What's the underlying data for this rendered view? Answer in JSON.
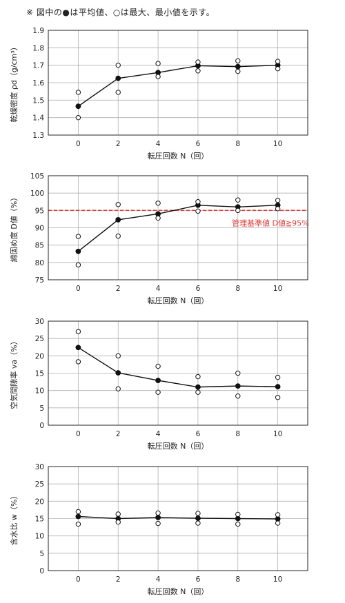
{
  "note": "※ 図中の●は平均値、○は最大、最小値を示す。",
  "colors": {
    "axis": "#222222",
    "grid": "#b0b0b0",
    "reference": "#e03a3a"
  },
  "chart_data": [
    {
      "type": "scatter",
      "xlabel": "転圧回数 N（回）",
      "ylabel": "乾燥密度 ρd（g/cm³）",
      "x_ticks": [
        0,
        2,
        4,
        6,
        8,
        10
      ],
      "y_ticks": [
        "1.3",
        "1.4",
        "1.5",
        "1.6",
        "1.7",
        "1.8",
        "1.9"
      ],
      "ylim": [
        1.3,
        1.9
      ],
      "xlim": [
        -1.5,
        11.5
      ],
      "grid": true,
      "series": [
        {
          "role": "mean",
          "marker": "filled-circle",
          "line": true,
          "points": [
            [
              0,
              1.465
            ],
            [
              2,
              1.625
            ],
            [
              4,
              1.658
            ],
            [
              6,
              1.697
            ],
            [
              8,
              1.692
            ],
            [
              10,
              1.7
            ]
          ]
        },
        {
          "role": "max-min",
          "marker": "open-circle",
          "line": false,
          "points": [
            [
              0,
              1.545
            ],
            [
              0,
              1.4
            ],
            [
              2,
              1.7
            ],
            [
              2,
              1.545
            ],
            [
              4,
              1.71
            ],
            [
              4,
              1.635
            ],
            [
              6,
              1.718
            ],
            [
              6,
              1.668
            ],
            [
              8,
              1.725
            ],
            [
              8,
              1.665
            ],
            [
              10,
              1.722
            ],
            [
              10,
              1.68
            ]
          ]
        }
      ]
    },
    {
      "type": "scatter",
      "xlabel": "転圧回数 N（回）",
      "ylabel": "締固め度 D値（%）",
      "x_ticks": [
        0,
        2,
        4,
        6,
        8,
        10
      ],
      "y_ticks": [
        "75",
        "80",
        "85",
        "90",
        "95",
        "100",
        "105"
      ],
      "ylim": [
        75,
        105
      ],
      "xlim": [
        -1.5,
        11.5
      ],
      "grid": true,
      "reference_line": {
        "value": 95,
        "label": "管理基準値 D値≧95%",
        "style": "dashed",
        "color": "#e03a3a"
      },
      "series": [
        {
          "role": "mean",
          "marker": "filled-circle",
          "line": true,
          "points": [
            [
              0,
              83.2
            ],
            [
              2,
              92.3
            ],
            [
              4,
              94.0
            ],
            [
              6,
              96.5
            ],
            [
              8,
              96.0
            ],
            [
              10,
              96.5
            ]
          ]
        },
        {
          "role": "max-min",
          "marker": "open-circle",
          "line": false,
          "points": [
            [
              0,
              87.5
            ],
            [
              0,
              79.3
            ],
            [
              2,
              96.7
            ],
            [
              2,
              87.6
            ],
            [
              4,
              97.1
            ],
            [
              4,
              92.8
            ],
            [
              6,
              97.5
            ],
            [
              6,
              94.8
            ],
            [
              8,
              98.0
            ],
            [
              8,
              95.0
            ],
            [
              10,
              97.9
            ],
            [
              10,
              95.5
            ]
          ]
        }
      ]
    },
    {
      "type": "scatter",
      "xlabel": "転圧回数 N（回）",
      "ylabel": "空気間隙率 va（%）",
      "x_ticks": [
        0,
        2,
        4,
        6,
        8,
        10
      ],
      "y_ticks": [
        "0",
        "5",
        "10",
        "15",
        "20",
        "25",
        "30"
      ],
      "ylim": [
        0,
        30
      ],
      "xlim": [
        -1.5,
        11.5
      ],
      "grid": true,
      "series": [
        {
          "role": "mean",
          "marker": "filled-circle",
          "line": true,
          "points": [
            [
              0,
              22.4
            ],
            [
              2,
              15.1
            ],
            [
              4,
              12.9
            ],
            [
              6,
              11.0
            ],
            [
              8,
              11.3
            ],
            [
              10,
              11.1
            ]
          ]
        },
        {
          "role": "max-min",
          "marker": "open-circle",
          "line": false,
          "points": [
            [
              0,
              27.0
            ],
            [
              0,
              18.3
            ],
            [
              2,
              20.0
            ],
            [
              2,
              10.5
            ],
            [
              4,
              17.0
            ],
            [
              4,
              9.5
            ],
            [
              6,
              14.0
            ],
            [
              6,
              9.5
            ],
            [
              8,
              15.0
            ],
            [
              8,
              8.4
            ],
            [
              10,
              13.8
            ],
            [
              10,
              8.0
            ]
          ]
        }
      ]
    },
    {
      "type": "scatter",
      "xlabel": "転圧回数 N（回）",
      "ylabel": "含水比 w（%）",
      "x_ticks": [
        0,
        2,
        4,
        6,
        8,
        10
      ],
      "y_ticks": [
        "0",
        "5",
        "10",
        "15",
        "20",
        "25",
        "30"
      ],
      "ylim": [
        0,
        30
      ],
      "xlim": [
        -1.5,
        11.5
      ],
      "grid": true,
      "series": [
        {
          "role": "mean",
          "marker": "filled-circle",
          "line": true,
          "points": [
            [
              0,
              15.6
            ],
            [
              2,
              15.0
            ],
            [
              4,
              15.3
            ],
            [
              6,
              15.1
            ],
            [
              8,
              15.0
            ],
            [
              10,
              14.9
            ]
          ]
        },
        {
          "role": "max-min",
          "marker": "open-circle",
          "line": false,
          "points": [
            [
              0,
              17.0
            ],
            [
              0,
              13.4
            ],
            [
              2,
              16.3
            ],
            [
              2,
              14.0
            ],
            [
              4,
              16.6
            ],
            [
              4,
              13.6
            ],
            [
              6,
              16.5
            ],
            [
              6,
              13.7
            ],
            [
              8,
              16.2
            ],
            [
              8,
              13.4
            ],
            [
              10,
              16.1
            ],
            [
              10,
              13.7
            ]
          ]
        }
      ]
    }
  ]
}
